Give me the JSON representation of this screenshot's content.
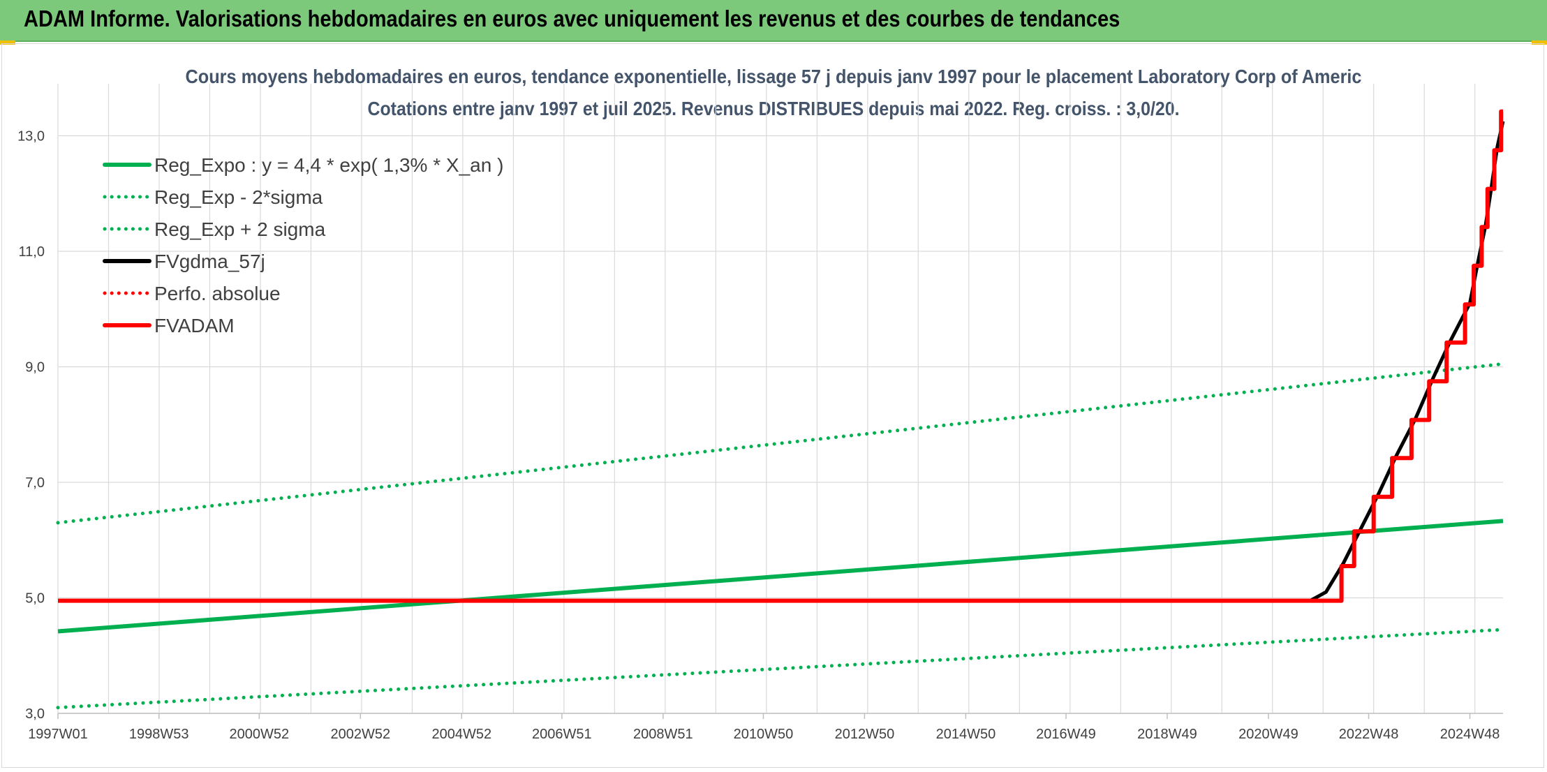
{
  "banner": {
    "title": "ADAM Informe. Valorisations hebdomadaires en euros avec uniquement les revenus et des courbes de tendances"
  },
  "colors": {
    "banner_bg": "#7cc97b",
    "green": "#00b050",
    "black": "#000000",
    "red": "#ff0000",
    "grid": "#d9d9d9"
  },
  "chart_data": {
    "type": "line",
    "title_line1": "Cours moyens hebdomadaires en euros, tendance exponentielle, lissage 57 j depuis janv 1997 pour le placement Laboratory Corp of Americ",
    "title_line2": "Cotations entre janv 1997 et juil 2025. Revenus DISTRIBUES depuis mai 2022. Reg. croiss. : 3,0/20.",
    "x_tick_labels": [
      "1997W01",
      "1998W53",
      "2000W52",
      "2002W52",
      "2004W52",
      "2006W51",
      "2008W51",
      "2010W50",
      "2012W50",
      "2014W50",
      "2016W49",
      "2018W49",
      "2020W49",
      "2022W48",
      "2024W48"
    ],
    "x_range": [
      "1997W01",
      "2025W30"
    ],
    "y_ticks": [
      "3,0",
      "5,0",
      "7,0",
      "9,0",
      "11,0",
      "13,0"
    ],
    "ylim": [
      3.0,
      13.9
    ],
    "grid": true,
    "legend_position": "top-left",
    "series": [
      {
        "name": "Reg_Expo : y = 4,4 * exp( 1,3% *  X_an )",
        "color": "#00b050",
        "style": "solid",
        "points": [
          [
            "1997W01",
            4.42
          ],
          [
            "2025W30",
            6.33
          ]
        ]
      },
      {
        "name": "Reg_Exp - 2*sigma",
        "color": "#00b050",
        "style": "dotted",
        "points": [
          [
            "1997W01",
            3.1
          ],
          [
            "2025W30",
            4.45
          ]
        ]
      },
      {
        "name": "Reg_Exp + 2 sigma",
        "color": "#00b050",
        "style": "dotted",
        "points": [
          [
            "1997W01",
            6.3
          ],
          [
            "2025W30",
            9.05
          ]
        ]
      },
      {
        "name": "FVgdma_57j",
        "color": "#000000",
        "style": "solid",
        "points": [
          [
            "1997W01",
            4.95
          ],
          [
            "2021W40",
            4.95
          ],
          [
            "2022W04",
            5.1
          ],
          [
            "2022W22",
            5.6
          ],
          [
            "2022W40",
            6.2
          ],
          [
            "2023W06",
            6.8
          ],
          [
            "2023W24",
            7.45
          ],
          [
            "2023W44",
            8.1
          ],
          [
            "2024W10",
            8.8
          ],
          [
            "2024W28",
            9.45
          ],
          [
            "2024W48",
            10.1
          ],
          [
            "2025W04",
            10.8
          ],
          [
            "2025W12",
            11.45
          ],
          [
            "2025W18",
            12.1
          ],
          [
            "2025W24",
            12.8
          ],
          [
            "2025W30",
            13.25
          ]
        ]
      },
      {
        "name": "Perfo. absolue",
        "color": "#ff0000",
        "style": "dotted",
        "points": []
      },
      {
        "name": "FVADAM",
        "color": "#ff0000",
        "style": "solid",
        "points": [
          [
            "1997W01",
            4.95
          ],
          [
            "2022W20",
            4.95
          ],
          [
            "2022W20",
            5.55
          ],
          [
            "2022W33",
            5.55
          ],
          [
            "2022W33",
            6.15
          ],
          [
            "2023W01",
            6.15
          ],
          [
            "2023W01",
            6.75
          ],
          [
            "2023W20",
            6.75
          ],
          [
            "2023W20",
            7.42
          ],
          [
            "2023W40",
            7.42
          ],
          [
            "2023W40",
            8.08
          ],
          [
            "2024W06",
            8.08
          ],
          [
            "2024W06",
            8.75
          ],
          [
            "2024W24",
            8.75
          ],
          [
            "2024W24",
            9.42
          ],
          [
            "2024W43",
            9.42
          ],
          [
            "2024W43",
            10.08
          ],
          [
            "2024W52",
            10.08
          ],
          [
            "2024W52",
            10.75
          ],
          [
            "2025W08",
            10.75
          ],
          [
            "2025W08",
            11.42
          ],
          [
            "2025W14",
            11.42
          ],
          [
            "2025W14",
            12.08
          ],
          [
            "2025W21",
            12.08
          ],
          [
            "2025W21",
            12.75
          ],
          [
            "2025W28",
            12.75
          ],
          [
            "2025W28",
            13.42
          ],
          [
            "2025W30",
            13.42
          ]
        ]
      }
    ]
  }
}
